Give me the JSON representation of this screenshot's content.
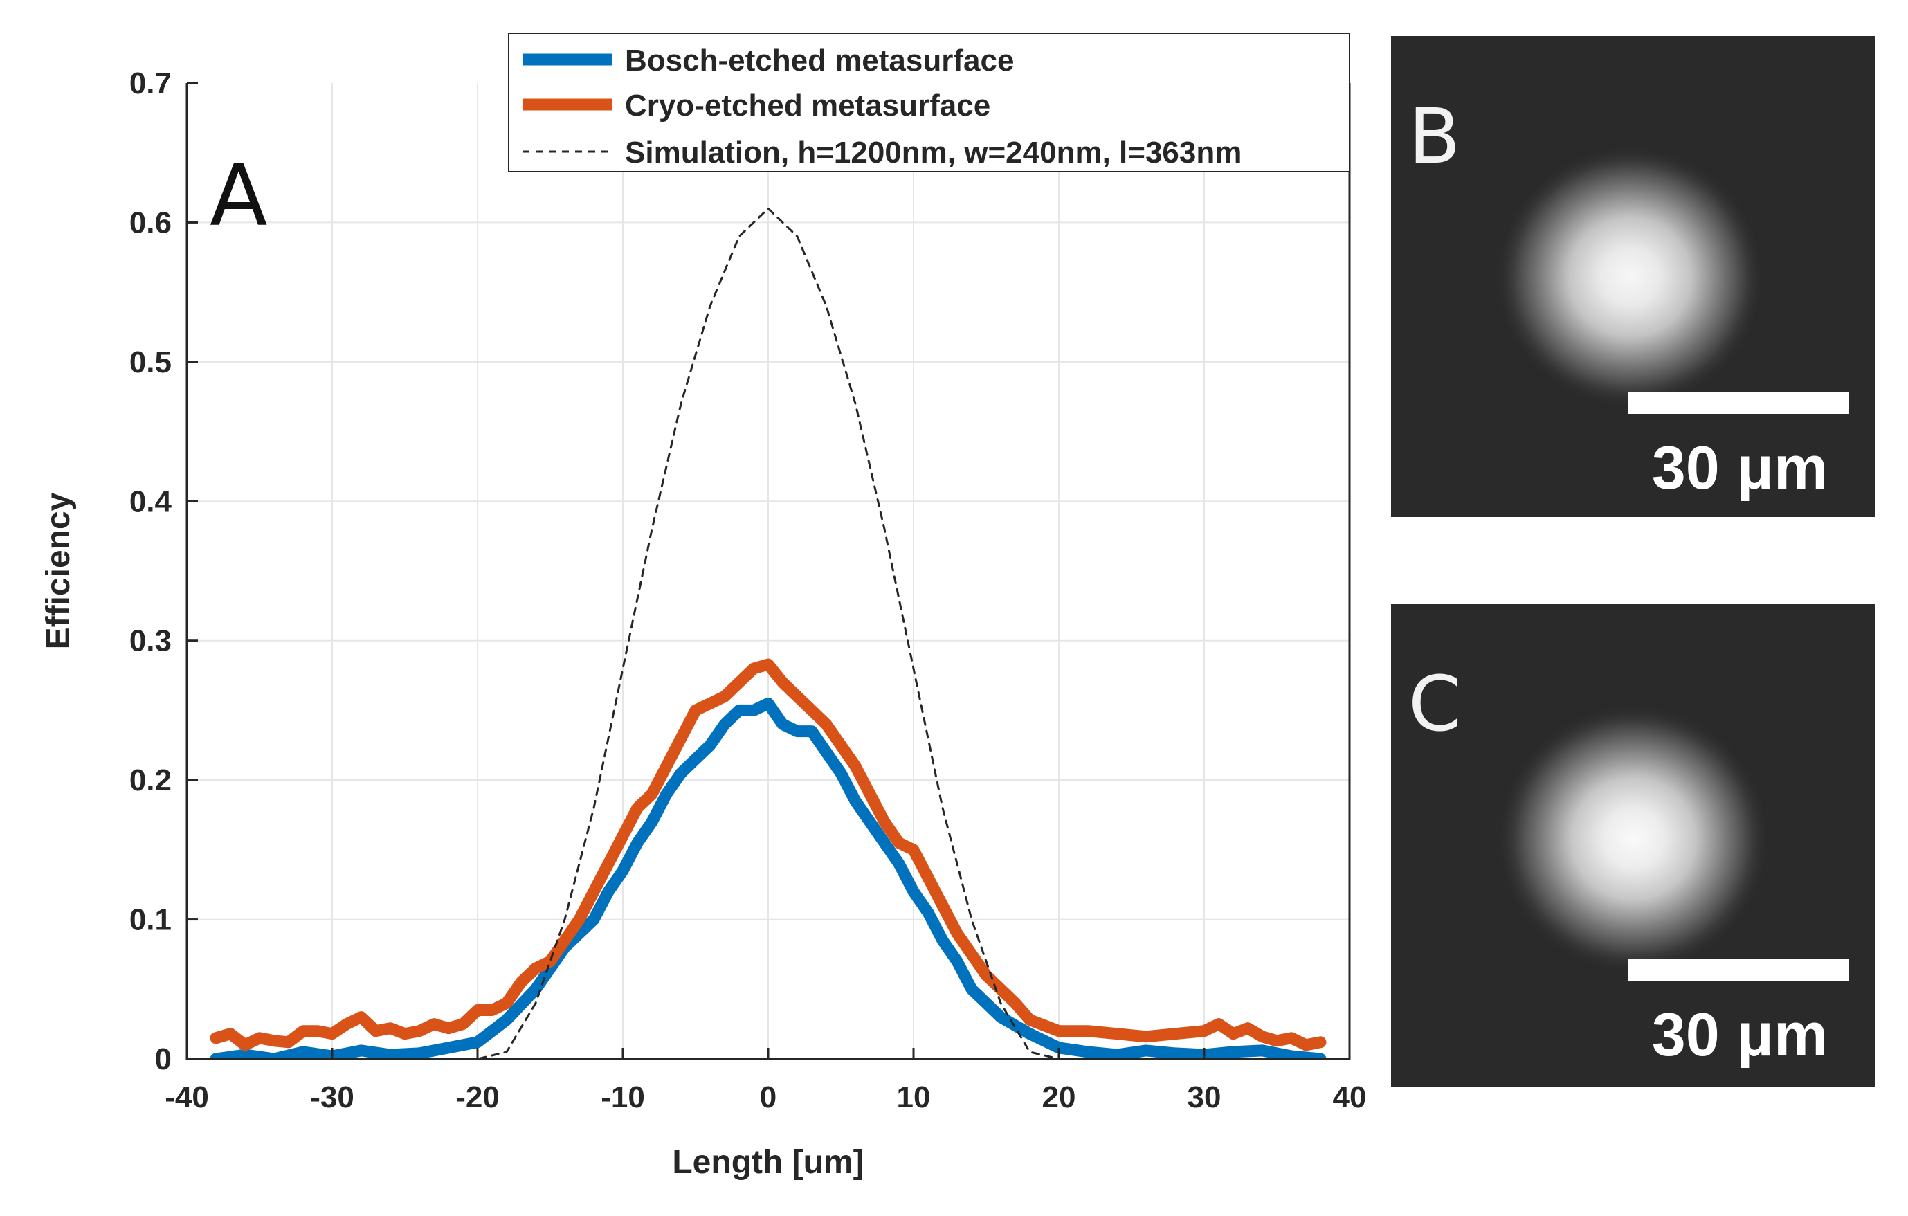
{
  "chart_data": {
    "type": "line",
    "panel_label": "A",
    "xlabel": "Length [um]",
    "ylabel": "Efficiency",
    "xlim": [
      -40,
      40
    ],
    "ylim": [
      0,
      0.7
    ],
    "grid": true,
    "legend_position": "top-right",
    "x_ticks": [
      "-40",
      "-30",
      "-20",
      "-10",
      "0",
      "10",
      "20",
      "30",
      "40"
    ],
    "y_ticks": [
      "0",
      "0.1",
      "0.2",
      "0.3",
      "0.4",
      "0.5",
      "0.6",
      "0.7"
    ],
    "series": [
      {
        "name": "Bosch-etched metasurface",
        "color": "#0072BD",
        "style": "solid",
        "x": [
          -38,
          -36,
          -34,
          -32,
          -30,
          -28,
          -26,
          -24,
          -22,
          -20,
          -18,
          -16,
          -15,
          -14,
          -13,
          -12,
          -11,
          -10,
          -9,
          -8,
          -7,
          -6,
          -5,
          -4,
          -3,
          -2,
          -1,
          0,
          1,
          2,
          3,
          4,
          5,
          6,
          7,
          8,
          9,
          10,
          11,
          12,
          13,
          14,
          15,
          16,
          18,
          20,
          22,
          24,
          26,
          28,
          30,
          32,
          34,
          36,
          38
        ],
        "y": [
          0.0,
          0.003,
          0.0,
          0.005,
          0.002,
          0.006,
          0.003,
          0.004,
          0.008,
          0.012,
          0.028,
          0.05,
          0.065,
          0.08,
          0.09,
          0.1,
          0.12,
          0.135,
          0.155,
          0.17,
          0.19,
          0.205,
          0.215,
          0.225,
          0.24,
          0.25,
          0.25,
          0.255,
          0.24,
          0.235,
          0.235,
          0.22,
          0.205,
          0.185,
          0.17,
          0.155,
          0.14,
          0.12,
          0.105,
          0.085,
          0.07,
          0.05,
          0.04,
          0.03,
          0.018,
          0.008,
          0.005,
          0.003,
          0.006,
          0.004,
          0.003,
          0.005,
          0.006,
          0.002,
          0.0
        ]
      },
      {
        "name": "Cryo-etched metasurface",
        "color": "#D95319",
        "style": "solid",
        "x": [
          -38,
          -37,
          -36,
          -35,
          -34,
          -33,
          -32,
          -31,
          -30,
          -29,
          -28,
          -27,
          -26,
          -25,
          -24,
          -23,
          -22,
          -21,
          -20,
          -19,
          -18,
          -17,
          -16,
          -15,
          -14,
          -13,
          -12,
          -11,
          -10,
          -9,
          -8,
          -7,
          -6,
          -5,
          -4,
          -3,
          -2,
          -1,
          0,
          1,
          2,
          3,
          4,
          5,
          6,
          7,
          8,
          9,
          10,
          11,
          12,
          13,
          14,
          15,
          16,
          17,
          18,
          20,
          22,
          24,
          26,
          28,
          30,
          31,
          32,
          33,
          34,
          35,
          36,
          37,
          38
        ],
        "y": [
          0.015,
          0.018,
          0.01,
          0.015,
          0.013,
          0.012,
          0.02,
          0.02,
          0.018,
          0.025,
          0.03,
          0.02,
          0.022,
          0.018,
          0.02,
          0.025,
          0.022,
          0.025,
          0.035,
          0.035,
          0.04,
          0.055,
          0.065,
          0.07,
          0.085,
          0.1,
          0.12,
          0.14,
          0.16,
          0.18,
          0.19,
          0.21,
          0.23,
          0.25,
          0.255,
          0.26,
          0.27,
          0.28,
          0.283,
          0.27,
          0.26,
          0.25,
          0.24,
          0.225,
          0.21,
          0.19,
          0.17,
          0.155,
          0.15,
          0.13,
          0.11,
          0.09,
          0.075,
          0.06,
          0.05,
          0.04,
          0.028,
          0.02,
          0.02,
          0.018,
          0.016,
          0.018,
          0.02,
          0.025,
          0.018,
          0.022,
          0.016,
          0.013,
          0.015,
          0.01,
          0.012
        ]
      },
      {
        "name": "Simulation, h=1200nm, w=240nm, l=363nm",
        "color": "#262626",
        "style": "dashed",
        "x": [
          -38,
          -20,
          -18,
          -16,
          -14,
          -12,
          -10,
          -8,
          -6,
          -4,
          -2,
          0,
          2,
          4,
          6,
          8,
          10,
          12,
          14,
          16,
          18,
          20,
          38
        ],
        "y": [
          0.0,
          0.0,
          0.005,
          0.04,
          0.1,
          0.18,
          0.28,
          0.38,
          0.47,
          0.54,
          0.59,
          0.61,
          0.59,
          0.54,
          0.47,
          0.38,
          0.28,
          0.18,
          0.1,
          0.04,
          0.005,
          0.0,
          0.0
        ]
      }
    ]
  },
  "panels": {
    "b": {
      "letter": "B",
      "scale_bar_label": "30 μm"
    },
    "c": {
      "letter": "C",
      "scale_bar_label": "30 μm"
    }
  }
}
